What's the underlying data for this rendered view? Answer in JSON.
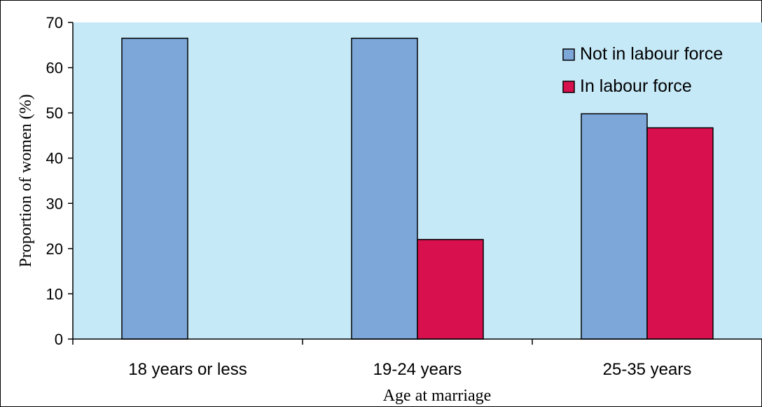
{
  "chart_data": {
    "type": "bar",
    "title": "",
    "xlabel": "Age at marriage",
    "ylabel": "Proportion of women (%)",
    "ylim": [
      0,
      70
    ],
    "yticks": [
      0,
      10,
      20,
      30,
      40,
      50,
      60,
      70
    ],
    "categories": [
      "18 years or less",
      "19-24 years",
      "25-35 years"
    ],
    "series": [
      {
        "name": "Not in labour force",
        "color": "#7da7d9",
        "values": [
          66.5,
          66.5,
          49.8
        ]
      },
      {
        "name": "In labour force",
        "color": "#d8104e",
        "values": [
          0,
          22,
          46.7
        ]
      }
    ],
    "legend_position": "top-right",
    "plot_background": "#c6e9f8",
    "grid": false
  }
}
